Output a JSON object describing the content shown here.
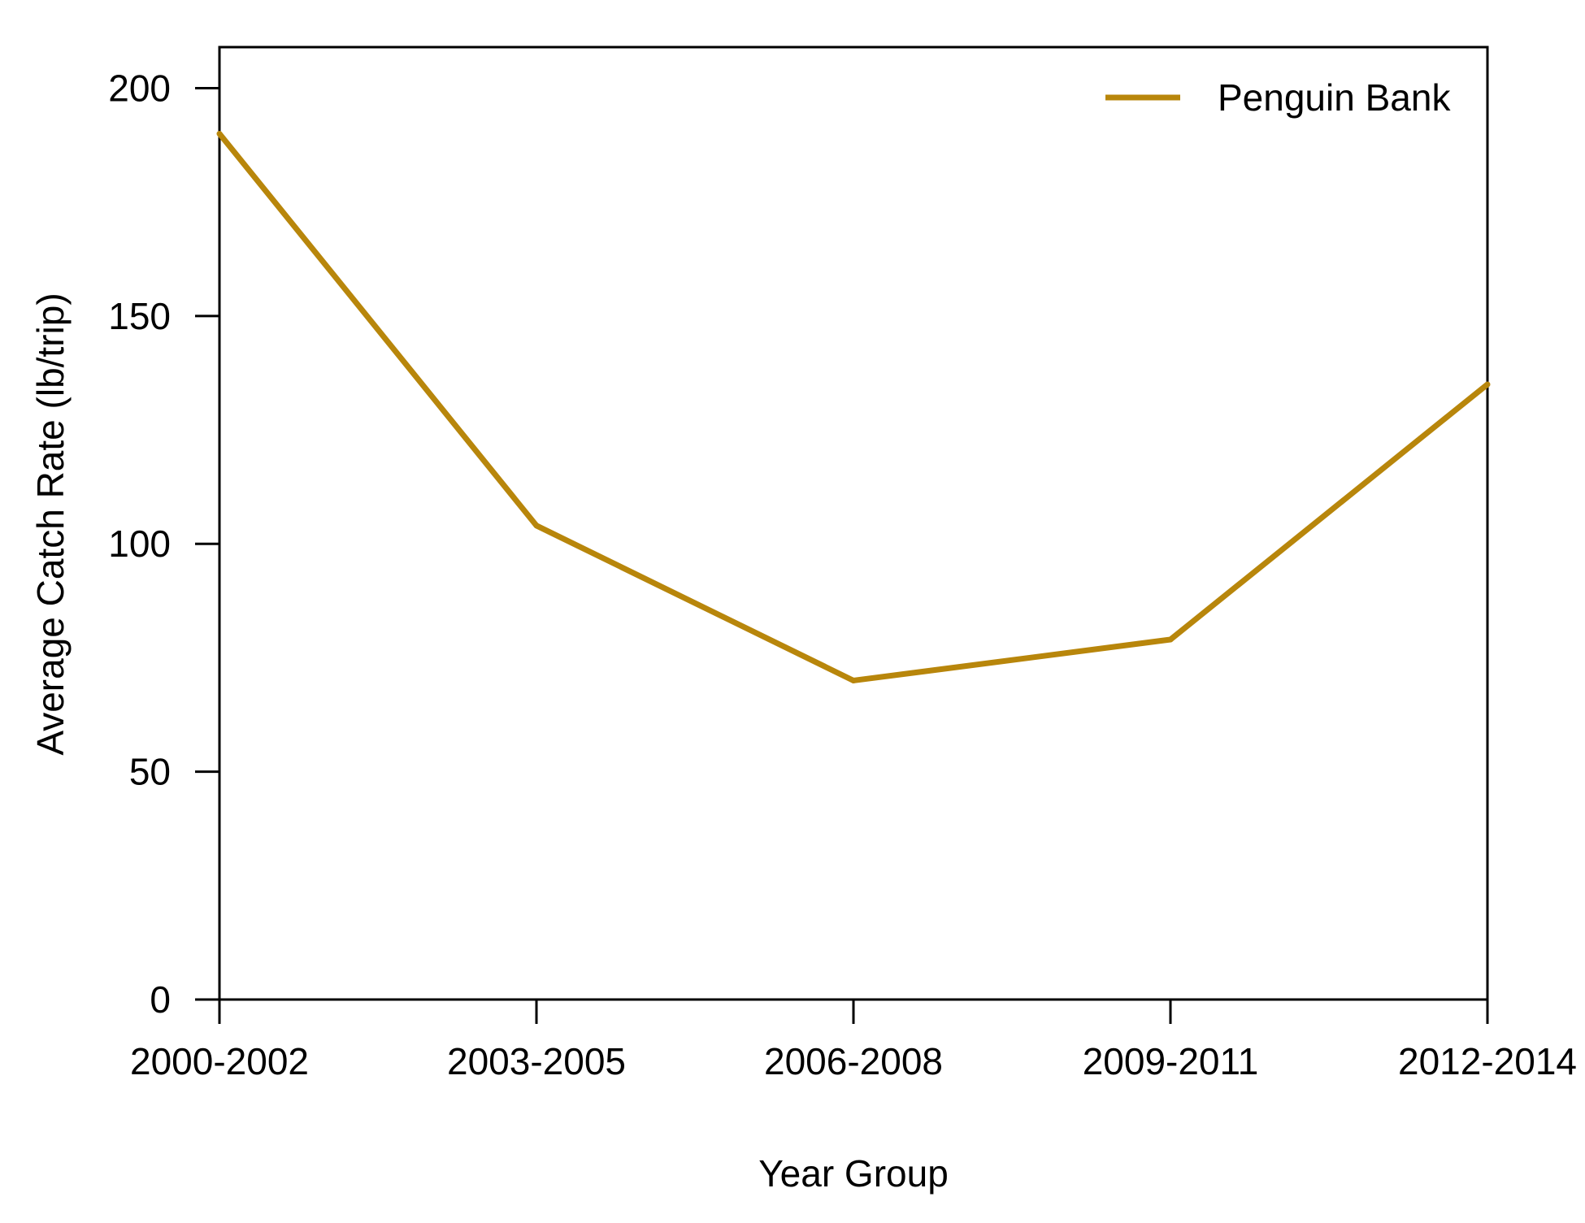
{
  "chart_data": {
    "type": "line",
    "title": "",
    "xlabel": "Year Group",
    "ylabel": "Average Catch Rate (lb/trip)",
    "categories": [
      "2000-2002",
      "2003-2005",
      "2006-2008",
      "2009-2011",
      "2012-2014"
    ],
    "series": [
      {
        "name": "Penguin Bank",
        "values": [
          190,
          104,
          70,
          79,
          135
        ],
        "color": "#b8860b"
      }
    ],
    "ylim": [
      0,
      209
    ],
    "yticks": [
      0,
      50,
      100,
      150,
      200
    ],
    "ytick_labels": [
      "0",
      "50",
      "100",
      "150",
      "200"
    ],
    "grid": false,
    "legend": "top-right"
  }
}
